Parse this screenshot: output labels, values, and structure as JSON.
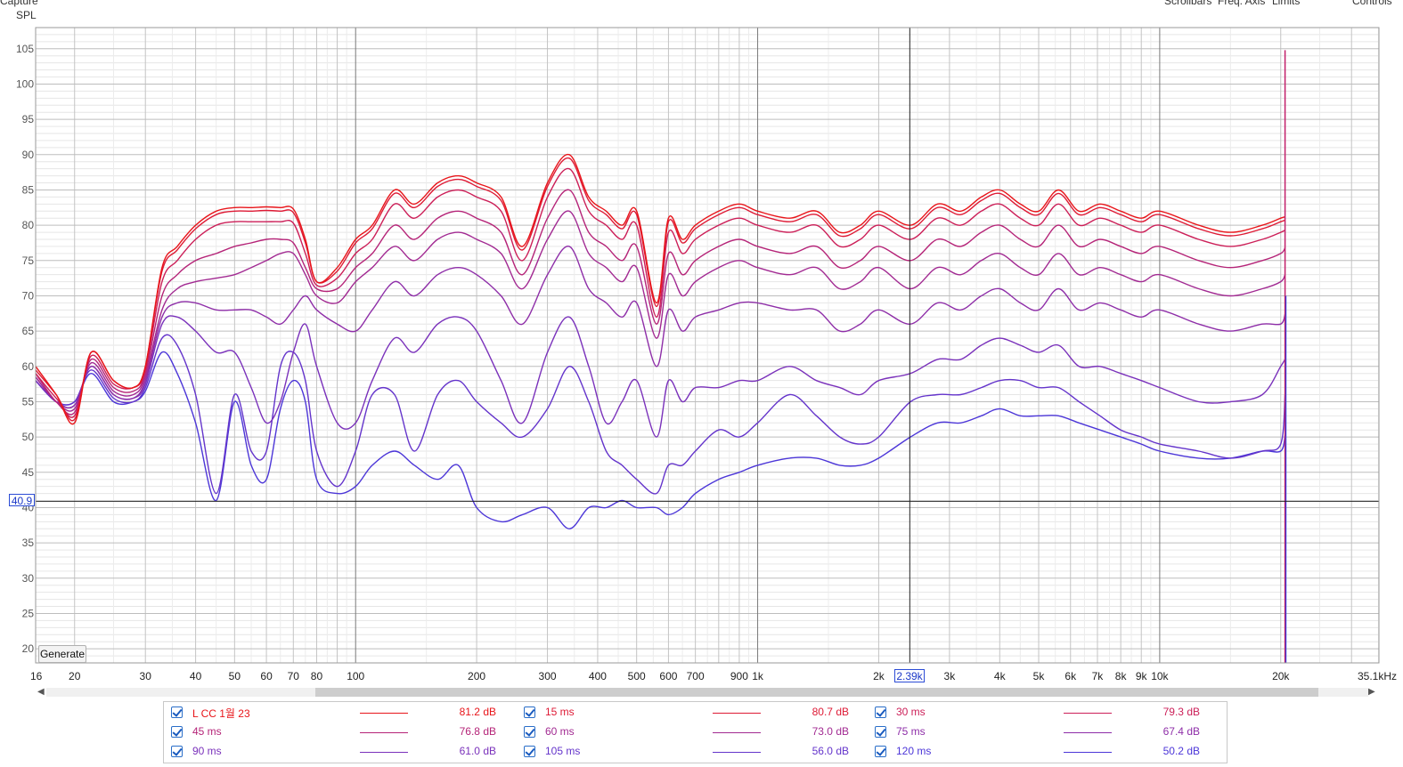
{
  "header": {
    "left_label": "Capture",
    "right_labels": [
      "Scrollbars",
      "Freq. Axis",
      "Limits",
      "Controls"
    ]
  },
  "buttons": {
    "generate": "Generate"
  },
  "cursor": {
    "spl_readout": "40.9",
    "freq_readout": "2.39k",
    "spl_value": 40.9,
    "freq_value": 2390
  },
  "chart_data": {
    "type": "line",
    "ylabel": "SPL",
    "ylim": [
      18,
      108
    ],
    "xlim": [
      16,
      35100
    ],
    "xscale": "log",
    "yticks": [
      105,
      100,
      95,
      90,
      85,
      80,
      75,
      70,
      65,
      60,
      55,
      50,
      45,
      40,
      35,
      30,
      25,
      20
    ],
    "xticks": [
      {
        "v": 16,
        "label": "16"
      },
      {
        "v": 20,
        "label": "20"
      },
      {
        "v": 30,
        "label": "30"
      },
      {
        "v": 40,
        "label": "40"
      },
      {
        "v": 50,
        "label": "50"
      },
      {
        "v": 60,
        "label": "60"
      },
      {
        "v": 70,
        "label": "70"
      },
      {
        "v": 80,
        "label": "80"
      },
      {
        "v": 100,
        "label": "100"
      },
      {
        "v": 200,
        "label": "200"
      },
      {
        "v": 300,
        "label": "300"
      },
      {
        "v": 400,
        "label": "400"
      },
      {
        "v": 500,
        "label": "500"
      },
      {
        "v": 600,
        "label": "600"
      },
      {
        "v": 700,
        "label": "700"
      },
      {
        "v": 900,
        "label": "900"
      },
      {
        "v": 1000,
        "label": "1k"
      },
      {
        "v": 2000,
        "label": "2k"
      },
      {
        "v": 3000,
        "label": "3k"
      },
      {
        "v": 4000,
        "label": "4k"
      },
      {
        "v": 5000,
        "label": "5k"
      },
      {
        "v": 6000,
        "label": "6k"
      },
      {
        "v": 7000,
        "label": "7k"
      },
      {
        "v": 8000,
        "label": "8k"
      },
      {
        "v": 9000,
        "label": "9k"
      },
      {
        "v": 10000,
        "label": "10k"
      },
      {
        "v": 20000,
        "label": "20k"
      },
      {
        "v": 35100,
        "label": "35.1kHz"
      }
    ],
    "grid": true,
    "legend_position": "bottom",
    "x": [
      16,
      18,
      20,
      22,
      25,
      28,
      30,
      33,
      36,
      40,
      45,
      50,
      55,
      60,
      65,
      70,
      75,
      80,
      90,
      100,
      110,
      125,
      140,
      160,
      180,
      200,
      230,
      260,
      300,
      340,
      380,
      420,
      460,
      500,
      560,
      600,
      650,
      700,
      800,
      900,
      1000,
      1200,
      1400,
      1600,
      1800,
      2000,
      2400,
      2800,
      3200,
      3600,
      4000,
      4500,
      5000,
      5600,
      6300,
      7100,
      8000,
      9000,
      10000,
      12500,
      15000,
      18000,
      20000,
      20500
    ],
    "series": [
      {
        "name": "L CC 1월 23",
        "color": "#e8151a",
        "legend_value": "81.2 dB",
        "values": [
          60,
          56,
          52,
          62,
          58,
          57,
          60,
          74,
          77,
          80,
          82,
          82.5,
          82.5,
          82.6,
          82.5,
          82.3,
          78,
          72,
          74,
          78,
          80,
          85,
          83,
          86,
          87,
          86,
          84,
          77,
          86,
          90,
          84,
          82,
          80,
          82,
          69,
          81,
          78,
          80,
          82,
          83,
          82,
          81,
          82,
          79,
          80,
          82,
          80,
          83,
          82,
          84,
          85,
          83,
          82,
          85,
          82,
          83,
          82,
          81,
          82,
          80,
          79,
          80,
          81,
          81.2
        ]
      },
      {
        "name": "15 ms",
        "color": "#de1a35",
        "legend_value": "80.7 dB",
        "values": [
          59.5,
          56,
          52.5,
          62,
          58,
          57,
          60,
          73.5,
          76.5,
          79.5,
          81.5,
          82,
          82,
          82.1,
          82,
          81.8,
          77.5,
          72,
          73.5,
          77.5,
          79.5,
          84.5,
          82.5,
          85.5,
          86.5,
          85.5,
          83.5,
          76.5,
          85.5,
          89.5,
          83.5,
          81.5,
          79.5,
          81.5,
          68.5,
          80.5,
          77.5,
          79.5,
          81.5,
          82.5,
          81.5,
          80.5,
          81.5,
          78.5,
          79.5,
          81.5,
          79.5,
          82.5,
          81.5,
          83.5,
          84.5,
          82.5,
          81.5,
          84.5,
          81.5,
          82.5,
          81.5,
          80.5,
          81.5,
          79.5,
          78.5,
          79.5,
          80.5,
          80.7
        ]
      },
      {
        "name": "30 ms",
        "color": "#cc1f58",
        "legend_value": "79.3 dB",
        "values": [
          59,
          55.5,
          53,
          61.5,
          57.5,
          57,
          59.5,
          72,
          75,
          78,
          80,
          80.5,
          80.5,
          80.5,
          80.5,
          80.3,
          76,
          71.5,
          72.5,
          76,
          78,
          83,
          81,
          84,
          85,
          84,
          82,
          75,
          84,
          88,
          82,
          80,
          78,
          80,
          67,
          79,
          76,
          78,
          80,
          81,
          80,
          79,
          80,
          77,
          78,
          80,
          78,
          81,
          80,
          82,
          83,
          81,
          80,
          83,
          80,
          81,
          80,
          79,
          80,
          78,
          77,
          78,
          79,
          79.3
        ]
      },
      {
        "name": "45 ms",
        "color": "#b52478",
        "legend_value": "76.8 dB",
        "values": [
          59,
          55,
          53.5,
          61,
          57,
          56.5,
          59,
          70,
          73,
          75,
          76,
          77,
          77.5,
          78,
          78,
          77.5,
          74,
          71,
          71,
          74,
          76,
          80,
          78,
          81,
          82,
          81,
          79,
          73,
          81,
          85,
          79,
          77,
          75,
          77,
          66,
          76,
          73,
          75,
          77,
          78,
          77,
          76,
          77,
          74,
          75,
          77,
          75,
          78,
          77,
          79,
          80,
          78,
          77,
          80,
          77,
          78,
          77,
          76,
          77,
          75,
          74,
          75,
          76,
          76.8
        ]
      },
      {
        "name": "60 ms",
        "color": "#a22a92",
        "legend_value": "73.0 dB",
        "values": [
          58.5,
          55,
          54,
          60.5,
          56.5,
          56,
          58.5,
          68,
          71,
          72,
          72.5,
          73,
          74,
          75,
          76,
          76,
          73,
          70,
          69,
          72,
          74,
          77,
          75,
          78,
          79,
          78,
          76,
          71,
          78,
          82,
          76,
          74,
          72,
          74,
          64,
          73,
          70,
          72,
          74,
          75,
          74,
          73,
          74,
          71,
          72,
          74,
          71,
          74,
          73,
          75,
          76,
          74,
          73,
          76,
          73,
          74,
          73,
          72,
          73,
          71,
          70,
          71,
          72,
          73
        ]
      },
      {
        "name": "75 ms",
        "color": "#8e2ea8",
        "legend_value": "67.4 dB",
        "values": [
          58.5,
          55,
          54.5,
          60,
          56,
          55.5,
          58,
          67,
          69,
          69,
          68,
          68,
          68,
          67,
          66,
          68,
          70,
          68,
          66,
          65,
          68,
          72,
          70,
          73,
          74,
          73,
          70,
          66,
          73,
          77,
          71,
          69,
          67,
          69,
          60,
          68,
          65,
          67,
          68,
          69,
          69,
          68,
          68,
          65,
          66,
          68,
          66,
          69,
          68,
          70,
          71,
          69,
          68,
          71,
          68,
          69,
          68,
          67,
          68,
          66,
          65,
          66,
          66,
          67.4
        ]
      },
      {
        "name": "90 ms",
        "color": "#7a31bb",
        "legend_value": "61.0 dB",
        "values": [
          58,
          55,
          54.5,
          60,
          56,
          55.5,
          57.5,
          66,
          67,
          65,
          62,
          62,
          57,
          52,
          55,
          62,
          66,
          60,
          52,
          52,
          58,
          64,
          62,
          66,
          67,
          65,
          58,
          52,
          62,
          67,
          60,
          52,
          55,
          58,
          50,
          58,
          55,
          57,
          57,
          58,
          58,
          60,
          58,
          57,
          56,
          58,
          59,
          61,
          61,
          63,
          64,
          63,
          62,
          63,
          60,
          60,
          59,
          58,
          57,
          55,
          55,
          56,
          60,
          61
        ]
      },
      {
        "name": "105 ms",
        "color": "#6434cb",
        "legend_value": "56.0 dB",
        "values": [
          58,
          55,
          55,
          59.5,
          55.5,
          55,
          57,
          64,
          63,
          56,
          42,
          56,
          48,
          48,
          60,
          62,
          58,
          48,
          43,
          48,
          56,
          56,
          48,
          56,
          58,
          55,
          52,
          50,
          54,
          60,
          55,
          48,
          46,
          44,
          42,
          46,
          46,
          48,
          51,
          50,
          52,
          56,
          53,
          50,
          49,
          50,
          55,
          56,
          56,
          57,
          58,
          58,
          57,
          57,
          55,
          53,
          51,
          50,
          49,
          48,
          47,
          48,
          49,
          56
        ]
      },
      {
        "name": "120 ms",
        "color": "#4c36d8",
        "legend_value": "50.2 dB",
        "values": [
          58,
          55,
          55,
          59,
          55,
          55,
          56.5,
          62,
          59,
          52,
          41,
          55,
          46,
          44,
          54,
          58,
          55,
          44,
          42,
          43,
          46,
          48,
          46,
          44,
          46,
          40,
          38,
          39,
          40,
          37,
          40,
          40,
          41,
          40,
          40,
          39,
          40,
          42,
          44,
          45,
          46,
          47,
          47,
          46,
          46,
          47,
          50,
          52,
          52,
          53,
          54,
          53,
          53,
          53,
          52,
          51,
          50,
          49,
          48,
          47,
          47,
          48,
          48,
          50.2
        ]
      }
    ]
  }
}
